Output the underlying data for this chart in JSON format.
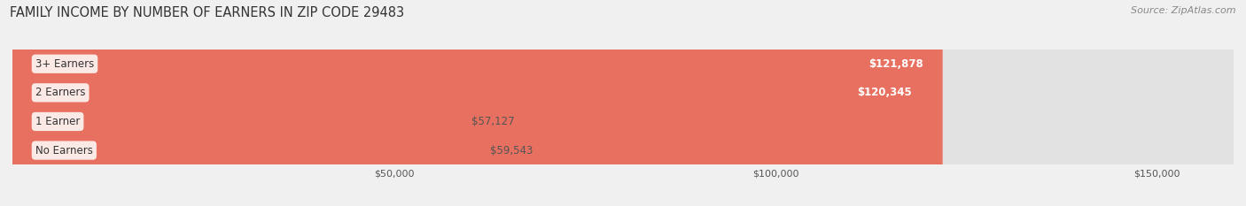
{
  "title": "FAMILY INCOME BY NUMBER OF EARNERS IN ZIP CODE 29483",
  "source": "Source: ZipAtlas.com",
  "categories": [
    "No Earners",
    "1 Earner",
    "2 Earners",
    "3+ Earners"
  ],
  "values": [
    59543,
    57127,
    120345,
    121878
  ],
  "bar_colors": [
    "#aaaacc",
    "#f4a0b5",
    "#f5a83c",
    "#e87060"
  ],
  "label_colors": [
    "#555555",
    "#555555",
    "#ffffff",
    "#ffffff"
  ],
  "background_color": "#f0f0f0",
  "bar_bg_color": "#e2e2e2",
  "xlim": [
    0,
    160000
  ],
  "xticks": [
    50000,
    100000,
    150000
  ],
  "xtick_labels": [
    "$50,000",
    "$100,000",
    "$150,000"
  ],
  "figsize": [
    14.06,
    2.33
  ],
  "dpi": 100,
  "title_fontsize": 10.5,
  "source_fontsize": 8,
  "bar_height": 0.52,
  "bar_label_fontsize": 8.5,
  "category_fontsize": 8.5,
  "xtick_fontsize": 8
}
